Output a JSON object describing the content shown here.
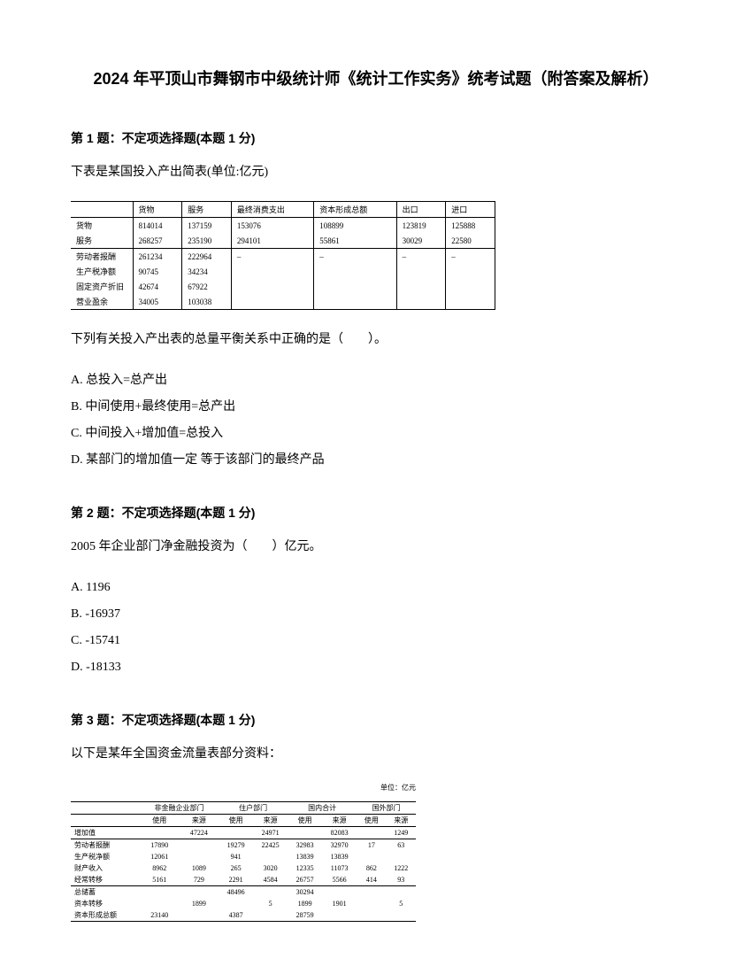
{
  "title": "2024 年平顶山市舞钢市中级统计师《统计工作实务》统考试题（附答案及解析）",
  "q1": {
    "header": "第 1 题：不定项选择题(本题 1 分)",
    "text": "下表是某国投入产出简表(单位:亿元)",
    "table": {
      "columns": [
        "",
        "货物",
        "服务",
        "最终消费支出",
        "资本形成总额",
        "出口",
        "进口"
      ],
      "rows": [
        [
          "货物",
          "814014",
          "137159",
          "153076",
          "108899",
          "123819",
          "125888"
        ],
        [
          "服务",
          "268257",
          "235190",
          "294101",
          "55861",
          "30029",
          "22580"
        ],
        [
          "劳动者报酬",
          "261234",
          "222964",
          "–",
          "–",
          "–",
          "–"
        ],
        [
          "生产税净额",
          "90745",
          "34234",
          "",
          "",
          "",
          ""
        ],
        [
          "固定资产折旧",
          "42674",
          "67922",
          "",
          "",
          "",
          ""
        ],
        [
          "营业盈余",
          "34005",
          "103038",
          "",
          "",
          "",
          ""
        ]
      ]
    },
    "subtext": "下列有关投入产出表的总量平衡关系中正确的是（　　）。",
    "options": {
      "a": "A. 总投入=总产出",
      "b": "B. 中间使用+最终使用=总产出",
      "c": "C. 中间投入+增加值=总投入",
      "d": "D. 某部门的增加值一定 等于该部门的最终产品"
    }
  },
  "q2": {
    "header": "第 2 题：不定项选择题(本题 1 分)",
    "text": "2005 年企业部门净金融投资为（　　）亿元。",
    "options": {
      "a": "A. 1196",
      "b": "B. -16937",
      "c": "C. -15741",
      "d": "D. -18133"
    }
  },
  "q3": {
    "header": "第 3 题：不定项选择题(本题 1 分)",
    "text": "以下是某年全国资金流量表部分资料：",
    "table": {
      "unit": "单位：亿元",
      "header_groups": [
        "",
        "非金融企业部门",
        "住户部门",
        "国内合计",
        "国外部门"
      ],
      "sub_headers": [
        "",
        "使用",
        "来源",
        "使用",
        "来源",
        "使用",
        "来源",
        "使用",
        "来源"
      ],
      "rows": [
        [
          "增加值",
          "",
          "47224",
          "",
          "24971",
          "",
          "82083",
          "",
          "1249"
        ],
        [
          "劳动者报酬",
          "17890",
          "",
          "19279",
          "22425",
          "32983",
          "32970",
          "17",
          "63"
        ],
        [
          "生产税净额",
          "12061",
          "",
          "941",
          "",
          "13839",
          "13839",
          "",
          ""
        ],
        [
          "财产收入",
          "8962",
          "1089",
          "265",
          "3020",
          "12335",
          "11073",
          "862",
          "1222"
        ],
        [
          "经常转移",
          "5161",
          "729",
          "2291",
          "4584",
          "26757",
          "5566",
          "414",
          "93"
        ],
        [
          "总储蓄",
          "",
          "",
          "48496",
          "",
          "30294",
          "",
          "",
          ""
        ],
        [
          "资本转移",
          "",
          "1899",
          "",
          "5",
          "1899",
          "1901",
          "",
          "5"
        ],
        [
          "资本形成总额",
          "23140",
          "",
          "4387",
          "",
          "28759",
          "",
          "",
          ""
        ]
      ]
    }
  }
}
